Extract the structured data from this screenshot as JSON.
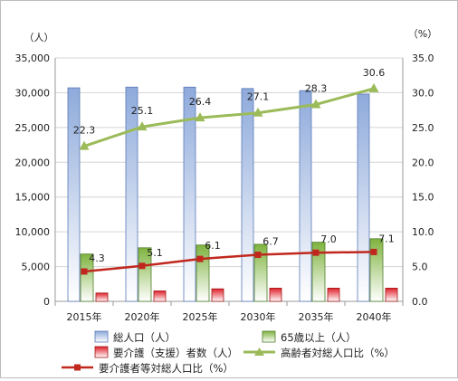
{
  "chart_data": {
    "type": "bar",
    "categories": [
      "2015年",
      "2020年",
      "2025年",
      "2030年",
      "2035年",
      "2040年"
    ],
    "y_left": {
      "unit": "（人）",
      "range": [
        0,
        35000
      ],
      "ticks": [
        "0",
        "5,000",
        "10,000",
        "15,000",
        "20,000",
        "25,000",
        "30,000",
        "35,000"
      ]
    },
    "y_right": {
      "unit": "（%）",
      "range": [
        0,
        35
      ],
      "ticks": [
        "0.0",
        "5.0",
        "10.0",
        "15.0",
        "20.0",
        "25.0",
        "30.0",
        "35.0"
      ]
    },
    "series": [
      {
        "name": "総人口（人）",
        "kind": "bar",
        "axis": "left",
        "color": "#8eaadb",
        "values": [
          30700,
          30800,
          30800,
          30600,
          30300,
          29800
        ]
      },
      {
        "name": "65歳以上（人）",
        "kind": "bar",
        "axis": "left",
        "color": "#8fc25c",
        "values": [
          6800,
          7700,
          8100,
          8200,
          8500,
          9000
        ]
      },
      {
        "name": "要介護（支援）者数（人）",
        "kind": "bar",
        "axis": "left",
        "color": "#e0202a",
        "values": [
          1200,
          1500,
          1800,
          1900,
          1900,
          1900
        ]
      },
      {
        "name": "高齢者対総人口比（%）",
        "kind": "line",
        "axis": "right",
        "color": "#9bbb59",
        "values": [
          22.3,
          25.1,
          26.4,
          27.1,
          28.3,
          30.6
        ],
        "labels": [
          "22.3",
          "25.1",
          "26.4",
          "27.1",
          "28.3",
          "30.6"
        ]
      },
      {
        "name": "要介護者等対総人口比（%）",
        "kind": "line",
        "axis": "right",
        "color": "#c0281e",
        "values": [
          4.3,
          5.1,
          6.1,
          6.7,
          7.0,
          7.1
        ],
        "labels": [
          "4.3",
          "5.1",
          "6.1",
          "6.7",
          "7.0",
          "7.1"
        ]
      }
    ],
    "grid": true,
    "legend_position": "bottom"
  }
}
